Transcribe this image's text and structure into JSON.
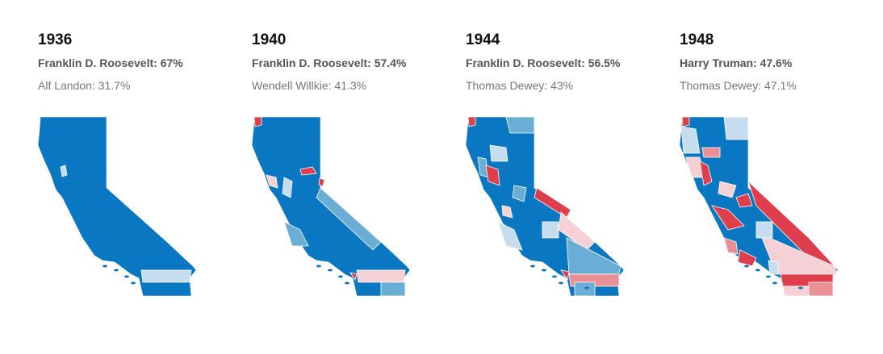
{
  "panels": [
    {
      "year": "1936",
      "winner": "Franklin D. Roosevelt: 67%",
      "runner_up": "Alf Landon: 31.7%"
    },
    {
      "year": "1940",
      "winner": "Franklin D. Roosevelt: 57.4%",
      "runner_up": "Wendell Willkie: 41.3%"
    },
    {
      "year": "1944",
      "winner": "Franklin D. Roosevelt: 56.5%",
      "runner_up": "Thomas Dewey: 43%"
    },
    {
      "year": "1948",
      "winner": "Harry Truman: 47.6%",
      "runner_up": "Thomas Dewey: 47.1%"
    }
  ]
}
